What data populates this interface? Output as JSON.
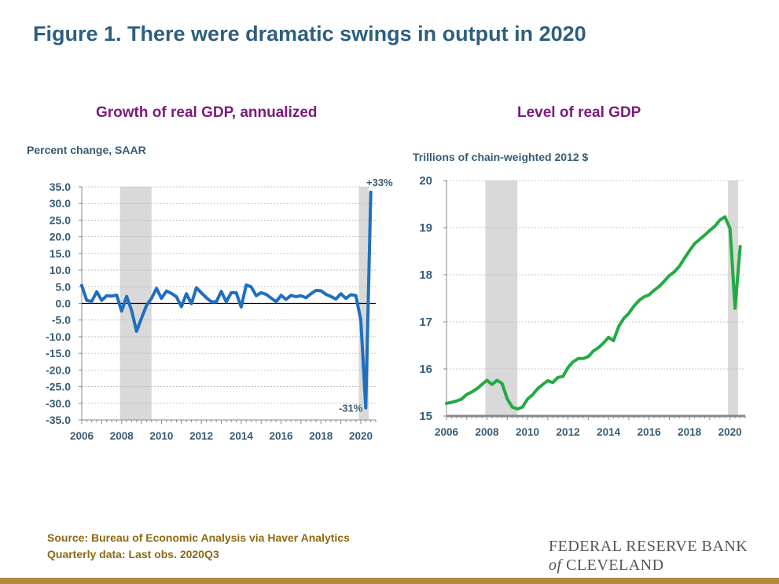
{
  "figure_title": "Figure 1. There were dramatic swings in output in 2020",
  "source_line1": "Source: Bureau of Economic Analysis via Haver Analytics",
  "source_line2": "Quarterly data: Last obs. 2020Q3",
  "logo": {
    "line1": "FEDERAL RESERVE BANK",
    "of": "of",
    "line2": "CLEVELAND"
  },
  "colors": {
    "growth_line": "#1f6fbf",
    "level_line": "#22ab43",
    "recession_shade": "#d9d9d9",
    "bottom_bar": "#b08a3e"
  },
  "chart_data": [
    {
      "type": "line",
      "title": "Growth of real GDP, annualized",
      "ylabel": "Percent change, SAAR",
      "xlim": [
        2006,
        2020.75
      ],
      "ylim": [
        -35,
        35
      ],
      "y_ticks": [
        "35.0",
        "30.0",
        "25.0",
        "20.0",
        "15.0",
        "10.0",
        "5.0",
        "0.0",
        "-5.0",
        "-10.0",
        "-15.0",
        "-20.0",
        "-25.0",
        "-30.0",
        "-35.0"
      ],
      "x_ticks": [
        "2006",
        "2008",
        "2010",
        "2012",
        "2014",
        "2016",
        "2018",
        "2020"
      ],
      "recessions": [
        [
          2007.92,
          2009.5
        ],
        [
          2019.9,
          2020.4
        ]
      ],
      "annotations": [
        "+33%",
        "-31%"
      ],
      "zero_line": true,
      "series": [
        {
          "x": [
            2006.0,
            2006.25,
            2006.5,
            2006.75,
            2007.0,
            2007.25,
            2007.5,
            2007.75,
            2008.0,
            2008.25,
            2008.5,
            2008.75,
            2009.0,
            2009.25,
            2009.5,
            2009.75,
            2010.0,
            2010.25,
            2010.5,
            2010.75,
            2011.0,
            2011.25,
            2011.5,
            2011.75,
            2012.0,
            2012.25,
            2012.5,
            2012.75,
            2013.0,
            2013.25,
            2013.5,
            2013.75,
            2014.0,
            2014.25,
            2014.5,
            2014.75,
            2015.0,
            2015.25,
            2015.5,
            2015.75,
            2016.0,
            2016.25,
            2016.5,
            2016.75,
            2017.0,
            2017.25,
            2017.5,
            2017.75,
            2018.0,
            2018.25,
            2018.5,
            2018.75,
            2019.0,
            2019.25,
            2019.5,
            2019.75,
            2020.0,
            2020.25,
            2020.5
          ],
          "values": [
            5.4,
            0.9,
            0.6,
            3.5,
            0.9,
            2.3,
            2.2,
            2.5,
            -2.3,
            2.1,
            -2.1,
            -8.4,
            -4.4,
            -0.6,
            1.5,
            4.5,
            1.5,
            3.7,
            3.0,
            2.0,
            -1.0,
            2.9,
            -0.1,
            4.7,
            3.2,
            1.7,
            0.5,
            0.5,
            3.6,
            0.5,
            3.2,
            3.2,
            -1.1,
            5.5,
            5.0,
            2.3,
            3.2,
            2.7,
            1.6,
            0.5,
            2.4,
            1.2,
            2.4,
            2.0,
            2.3,
            1.7,
            2.9,
            3.9,
            3.8,
            2.7,
            2.1,
            1.3,
            2.9,
            1.5,
            2.6,
            2.4,
            -5.0,
            -31.4,
            33.4
          ]
        }
      ]
    },
    {
      "type": "line",
      "title": "Level of real GDP",
      "ylabel": "Trillions of chain-weighted 2012 $",
      "xlim": [
        2006,
        2020.75
      ],
      "ylim": [
        15,
        20
      ],
      "y_ticks": [
        "20",
        "19",
        "18",
        "17",
        "16",
        "15"
      ],
      "x_ticks": [
        "2006",
        "2008",
        "2010",
        "2012",
        "2014",
        "2016",
        "2018",
        "2020"
      ],
      "recessions": [
        [
          2007.92,
          2009.5
        ],
        [
          2019.9,
          2020.4
        ]
      ],
      "series": [
        {
          "x": [
            2006.0,
            2006.25,
            2006.5,
            2006.75,
            2007.0,
            2007.25,
            2007.5,
            2007.75,
            2008.0,
            2008.25,
            2008.5,
            2008.75,
            2009.0,
            2009.25,
            2009.5,
            2009.75,
            2010.0,
            2010.25,
            2010.5,
            2010.75,
            2011.0,
            2011.25,
            2011.5,
            2011.75,
            2012.0,
            2012.25,
            2012.5,
            2012.75,
            2013.0,
            2013.25,
            2013.5,
            2013.75,
            2014.0,
            2014.25,
            2014.5,
            2014.75,
            2015.0,
            2015.25,
            2015.5,
            2015.75,
            2016.0,
            2016.25,
            2016.5,
            2016.75,
            2017.0,
            2017.25,
            2017.5,
            2017.75,
            2018.0,
            2018.25,
            2018.5,
            2018.75,
            2019.0,
            2019.25,
            2019.5,
            2019.75,
            2020.0,
            2020.25,
            2020.5
          ],
          "values": [
            15.27,
            15.29,
            15.32,
            15.36,
            15.46,
            15.51,
            15.58,
            15.67,
            15.76,
            15.67,
            15.76,
            15.69,
            15.36,
            15.19,
            15.15,
            15.19,
            15.36,
            15.45,
            15.58,
            15.67,
            15.75,
            15.71,
            15.82,
            15.84,
            16.03,
            16.15,
            16.22,
            16.22,
            16.26,
            16.38,
            16.45,
            16.55,
            16.67,
            16.6,
            16.9,
            17.07,
            17.18,
            17.33,
            17.45,
            17.53,
            17.57,
            17.67,
            17.75,
            17.86,
            17.98,
            18.06,
            18.18,
            18.35,
            18.51,
            18.66,
            18.75,
            18.84,
            18.94,
            19.03,
            19.16,
            19.23,
            18.98,
            17.29,
            18.6
          ]
        }
      ]
    }
  ]
}
